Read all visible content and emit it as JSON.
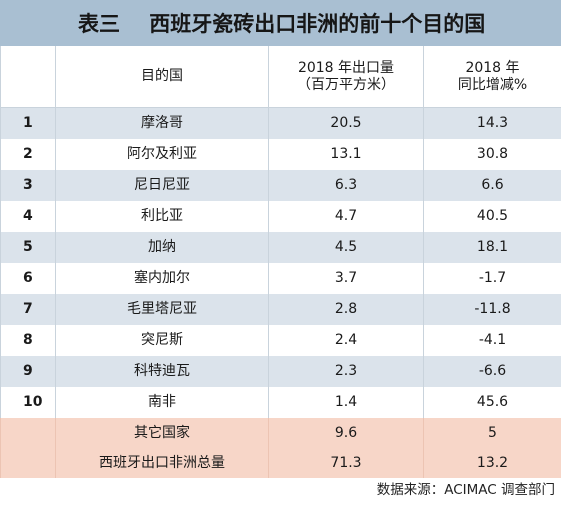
{
  "title": "表三    西班牙瓷砖出口非洲的前十个目的国",
  "headers": {
    "country": "目的国",
    "export_line1": "2018 年出口量",
    "export_line2": "（百万平方米）",
    "change_line1": "2018 年",
    "change_line2": "同比增减%"
  },
  "rows": [
    {
      "rank": "1",
      "country": "摩洛哥",
      "export": "20.5",
      "change": "14.3"
    },
    {
      "rank": "2",
      "country": "阿尔及利亚",
      "export": "13.1",
      "change": "30.8"
    },
    {
      "rank": "3",
      "country": "尼日尼亚",
      "export": "6.3",
      "change": "6.6"
    },
    {
      "rank": "4",
      "country": "利比亚",
      "export": "4.7",
      "change": "40.5"
    },
    {
      "rank": "5",
      "country": "加纳",
      "export": "4.5",
      "change": "18.1"
    },
    {
      "rank": "6",
      "country": "塞内加尔",
      "export": "3.7",
      "change": "-1.7"
    },
    {
      "rank": "7",
      "country": "毛里塔尼亚",
      "export": "2.8",
      "change": "-11.8"
    },
    {
      "rank": "8",
      "country": "突尼斯",
      "export": "2.4",
      "change": "-4.1"
    },
    {
      "rank": "9",
      "country": "科特迪瓦",
      "export": "2.3",
      "change": "-6.6"
    },
    {
      "rank": "10",
      "country": "南非",
      "export": "1.4",
      "change": "45.6"
    }
  ],
  "summary": [
    {
      "label": "其它国家",
      "export": "9.6",
      "change": "5"
    },
    {
      "label": "西班牙出口非洲总量",
      "export": "71.3",
      "change": "13.2"
    }
  ],
  "source": "数据来源：ACIMAC 调查部门",
  "colors": {
    "title_bg": "#a9bfd2",
    "row_shade": "#dbe3eb",
    "summary_bg": "#f7d6c8"
  }
}
